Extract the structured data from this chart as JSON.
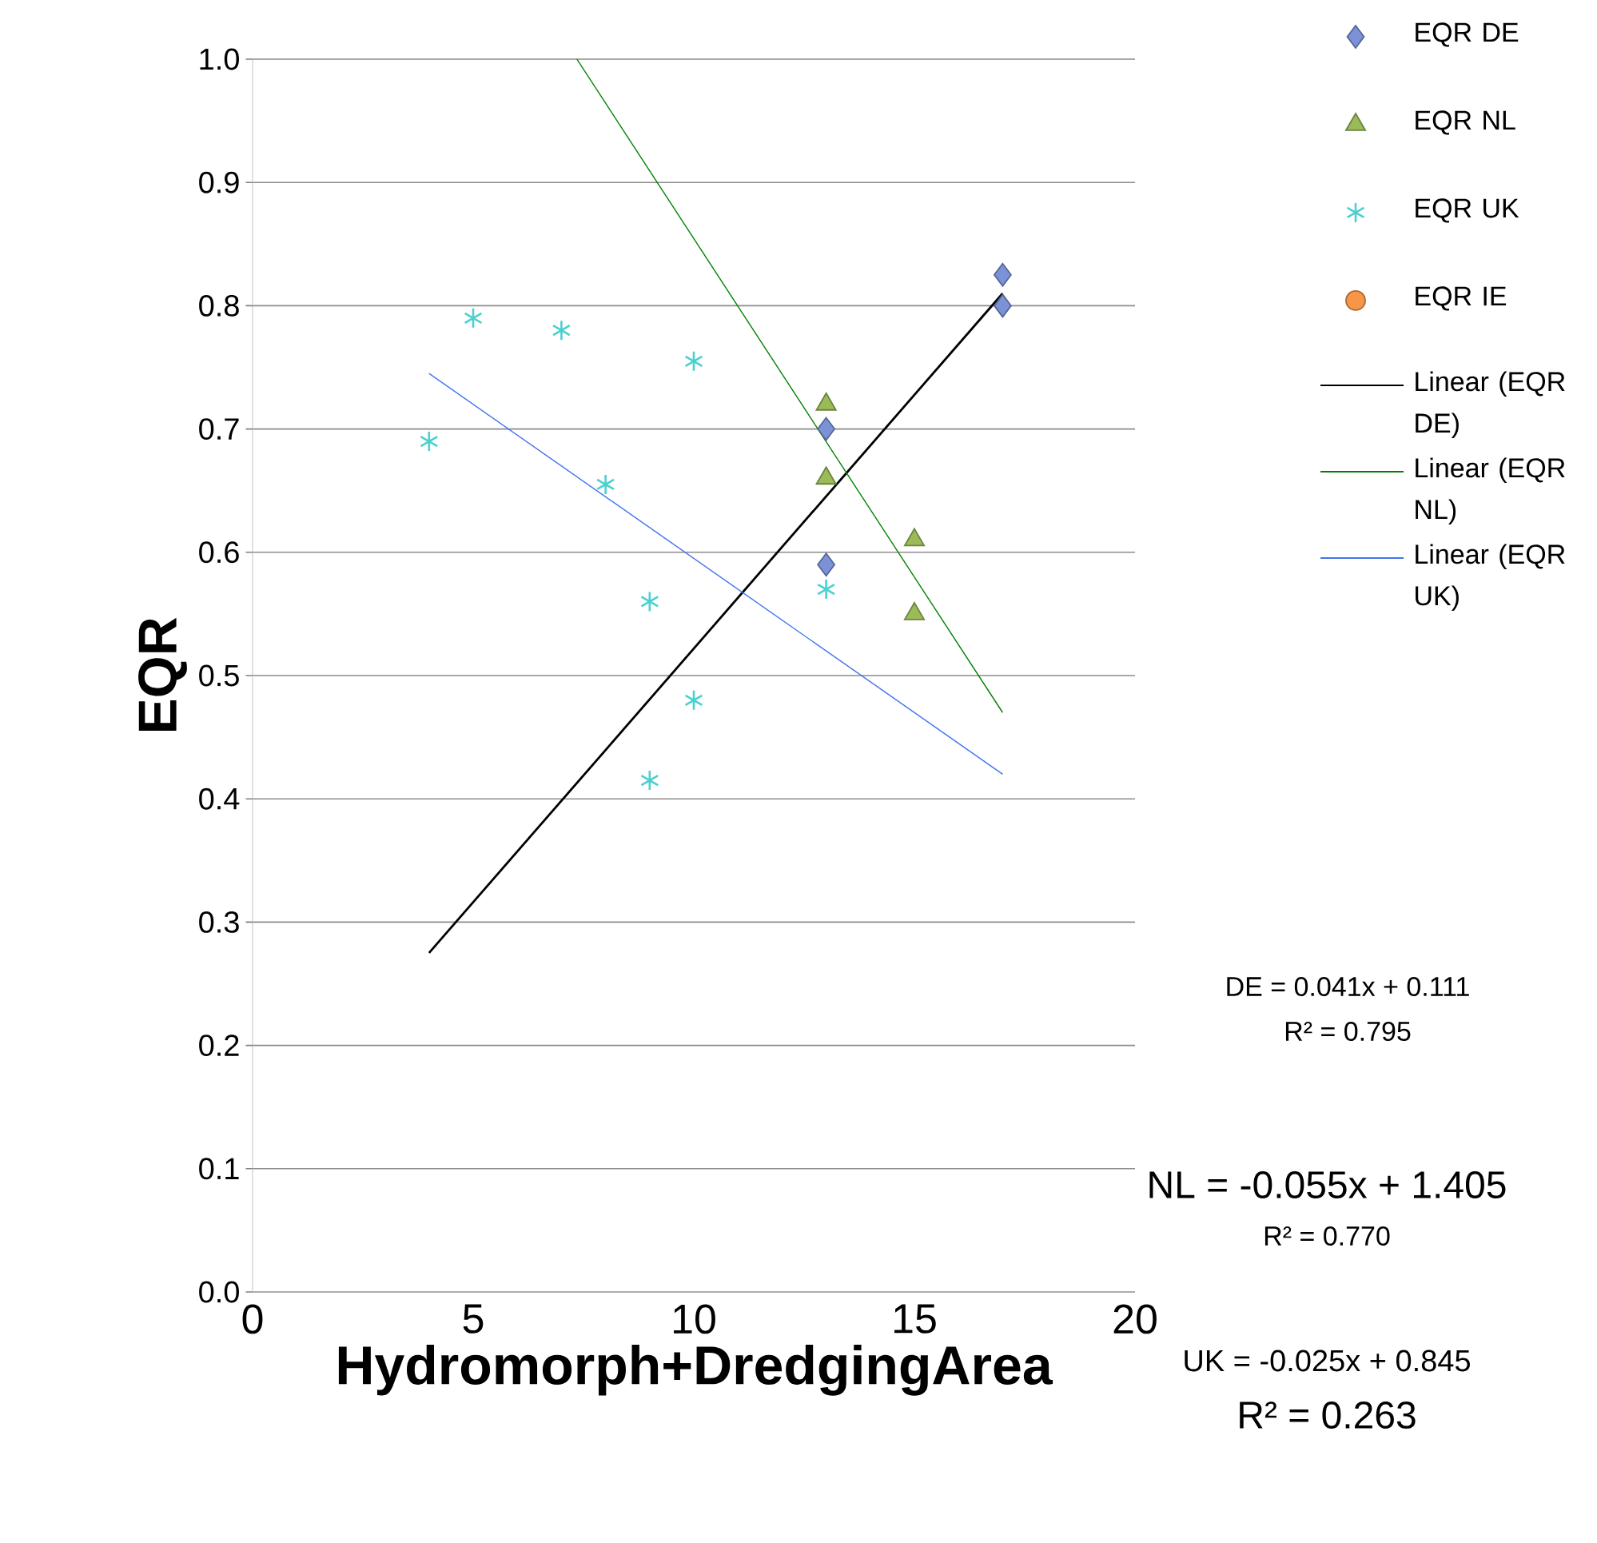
{
  "chart_data": {
    "type": "scatter",
    "xlabel": "Hydromorph+DredgingArea",
    "ylabel": "EQR",
    "xlim": [
      0,
      20
    ],
    "xticks": [
      0,
      5,
      10,
      15,
      20
    ],
    "ylim": [
      0,
      1
    ],
    "yticks": [
      {
        "value": 0,
        "label": "0.0"
      },
      {
        "value": 0.1,
        "label": "0.1"
      },
      {
        "value": 0.2,
        "label": "0.2"
      },
      {
        "value": 0.3,
        "label": "0.3"
      },
      {
        "value": 0.4,
        "label": "0.4"
      },
      {
        "value": 0.5,
        "label": "0.5"
      },
      {
        "value": 0.6,
        "label": "0.6"
      },
      {
        "value": 0.7,
        "label": "0.7"
      },
      {
        "value": 0.8,
        "label": "0.8"
      },
      {
        "value": 0.9,
        "label": "0.9"
      },
      {
        "value": 1,
        "label": "1.0"
      }
    ],
    "grid": "y",
    "legend": "right",
    "series": [
      {
        "name": "EQR DE",
        "marker": "diamond",
        "color": "#7b93d6",
        "x": [
          17,
          17,
          13,
          13
        ],
        "values": [
          0.825,
          0.8,
          0.7,
          0.59
        ]
      },
      {
        "name": "EQR NL",
        "marker": "triangle",
        "color": "#9bbb59",
        "x": [
          13,
          13,
          15,
          15
        ],
        "values": [
          0.72,
          0.66,
          0.61,
          0.55
        ]
      },
      {
        "name": "EQR UK",
        "marker": "cross",
        "color": "#4bd0d0",
        "x": [
          5,
          7,
          10,
          4,
          8,
          9,
          10,
          9,
          13
        ],
        "values": [
          0.79,
          0.78,
          0.755,
          0.69,
          0.655,
          0.56,
          0.48,
          0.415,
          0.57
        ]
      },
      {
        "name": "EQR IE",
        "marker": "circle",
        "color": "#f79646"
      },
      {
        "name": "Linear (EQR DE)",
        "type": "line",
        "line_style": "solid",
        "color": "#000000",
        "x": [
          4,
          17
        ],
        "values": [
          0.275,
          0.81
        ]
      },
      {
        "name": "Linear (EQR NL)",
        "type": "line",
        "line_style": "solid",
        "color": "#008000",
        "x": [
          7.35,
          17
        ],
        "values": [
          1.0,
          0.47
        ]
      },
      {
        "name": "Linear (EQR UK)",
        "type": "line",
        "line_style": "solid",
        "color": "#4472f0",
        "x": [
          4,
          17
        ],
        "values": [
          0.745,
          0.42
        ]
      }
    ],
    "annotations": [
      "DE = 0.041x + 0.111",
      "R² = 0.795",
      "NL = -0.055x + 1.405",
      "R² = 0.770",
      "UK = -0.025x + 0.845",
      "R² = 0.263"
    ]
  }
}
